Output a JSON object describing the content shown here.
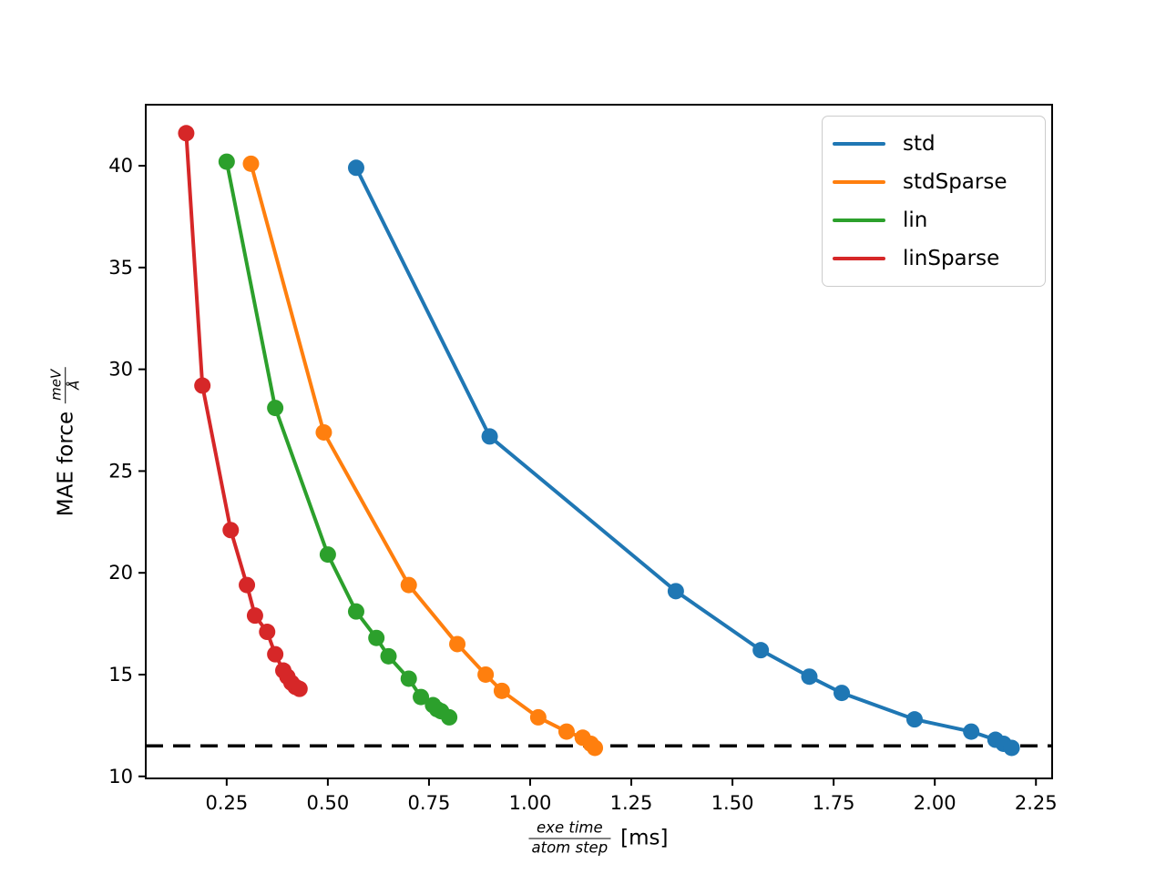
{
  "figure": {
    "background": "#ffffff",
    "text_color": "#000000",
    "axes_color": "#000000"
  },
  "chart_data": {
    "type": "line",
    "title": "",
    "xlabel_fraction": {
      "numerator": "exe time",
      "denominator": "atom step"
    },
    "xlabel_unit": "[ms]",
    "ylabel_prefix": "MAE force",
    "ylabel_fraction": {
      "numerator": "meV",
      "denominator": "Å"
    },
    "xlim": [
      0.05,
      2.29
    ],
    "ylim": [
      9.9,
      43.0
    ],
    "x_ticks": [
      0.25,
      0.5,
      0.75,
      1.0,
      1.25,
      1.5,
      1.75,
      2.0,
      2.25
    ],
    "x_tick_labels": [
      "0.25",
      "0.50",
      "0.75",
      "1.00",
      "1.25",
      "1.50",
      "1.75",
      "2.00",
      "2.25"
    ],
    "y_ticks": [
      10,
      15,
      20,
      25,
      30,
      35,
      40
    ],
    "y_tick_labels": [
      "10",
      "15",
      "20",
      "25",
      "30",
      "35",
      "40"
    ],
    "grid": false,
    "legend_position": "upper right",
    "reference_line": {
      "y": 11.5,
      "style": "dashed",
      "color": "#000000"
    },
    "series": [
      {
        "name": "std",
        "color": "#1f77b4",
        "points": [
          [
            0.57,
            39.9
          ],
          [
            0.9,
            26.7
          ],
          [
            1.36,
            19.1
          ],
          [
            1.57,
            16.2
          ],
          [
            1.69,
            14.9
          ],
          [
            1.77,
            14.1
          ],
          [
            1.95,
            12.8
          ],
          [
            2.09,
            12.2
          ],
          [
            2.15,
            11.8
          ],
          [
            2.17,
            11.6
          ],
          [
            2.19,
            11.4
          ]
        ]
      },
      {
        "name": "stdSparse",
        "color": "#ff7f0e",
        "points": [
          [
            0.31,
            40.1
          ],
          [
            0.49,
            26.9
          ],
          [
            0.7,
            19.4
          ],
          [
            0.82,
            16.5
          ],
          [
            0.89,
            15.0
          ],
          [
            0.93,
            14.2
          ],
          [
            1.02,
            12.9
          ],
          [
            1.09,
            12.2
          ],
          [
            1.13,
            11.9
          ],
          [
            1.15,
            11.6
          ],
          [
            1.16,
            11.4
          ]
        ]
      },
      {
        "name": "lin",
        "color": "#2ca02c",
        "points": [
          [
            0.25,
            40.2
          ],
          [
            0.37,
            28.1
          ],
          [
            0.5,
            20.9
          ],
          [
            0.57,
            18.1
          ],
          [
            0.62,
            16.8
          ],
          [
            0.65,
            15.9
          ],
          [
            0.7,
            14.8
          ],
          [
            0.73,
            13.9
          ],
          [
            0.76,
            13.5
          ],
          [
            0.77,
            13.3
          ],
          [
            0.78,
            13.2
          ],
          [
            0.8,
            12.9
          ]
        ]
      },
      {
        "name": "linSparse",
        "color": "#d62728",
        "points": [
          [
            0.15,
            41.6
          ],
          [
            0.19,
            29.2
          ],
          [
            0.26,
            22.1
          ],
          [
            0.3,
            19.4
          ],
          [
            0.32,
            17.9
          ],
          [
            0.35,
            17.1
          ],
          [
            0.37,
            16.0
          ],
          [
            0.39,
            15.2
          ],
          [
            0.4,
            14.9
          ],
          [
            0.41,
            14.6
          ],
          [
            0.42,
            14.4
          ],
          [
            0.43,
            14.3
          ]
        ]
      }
    ]
  }
}
